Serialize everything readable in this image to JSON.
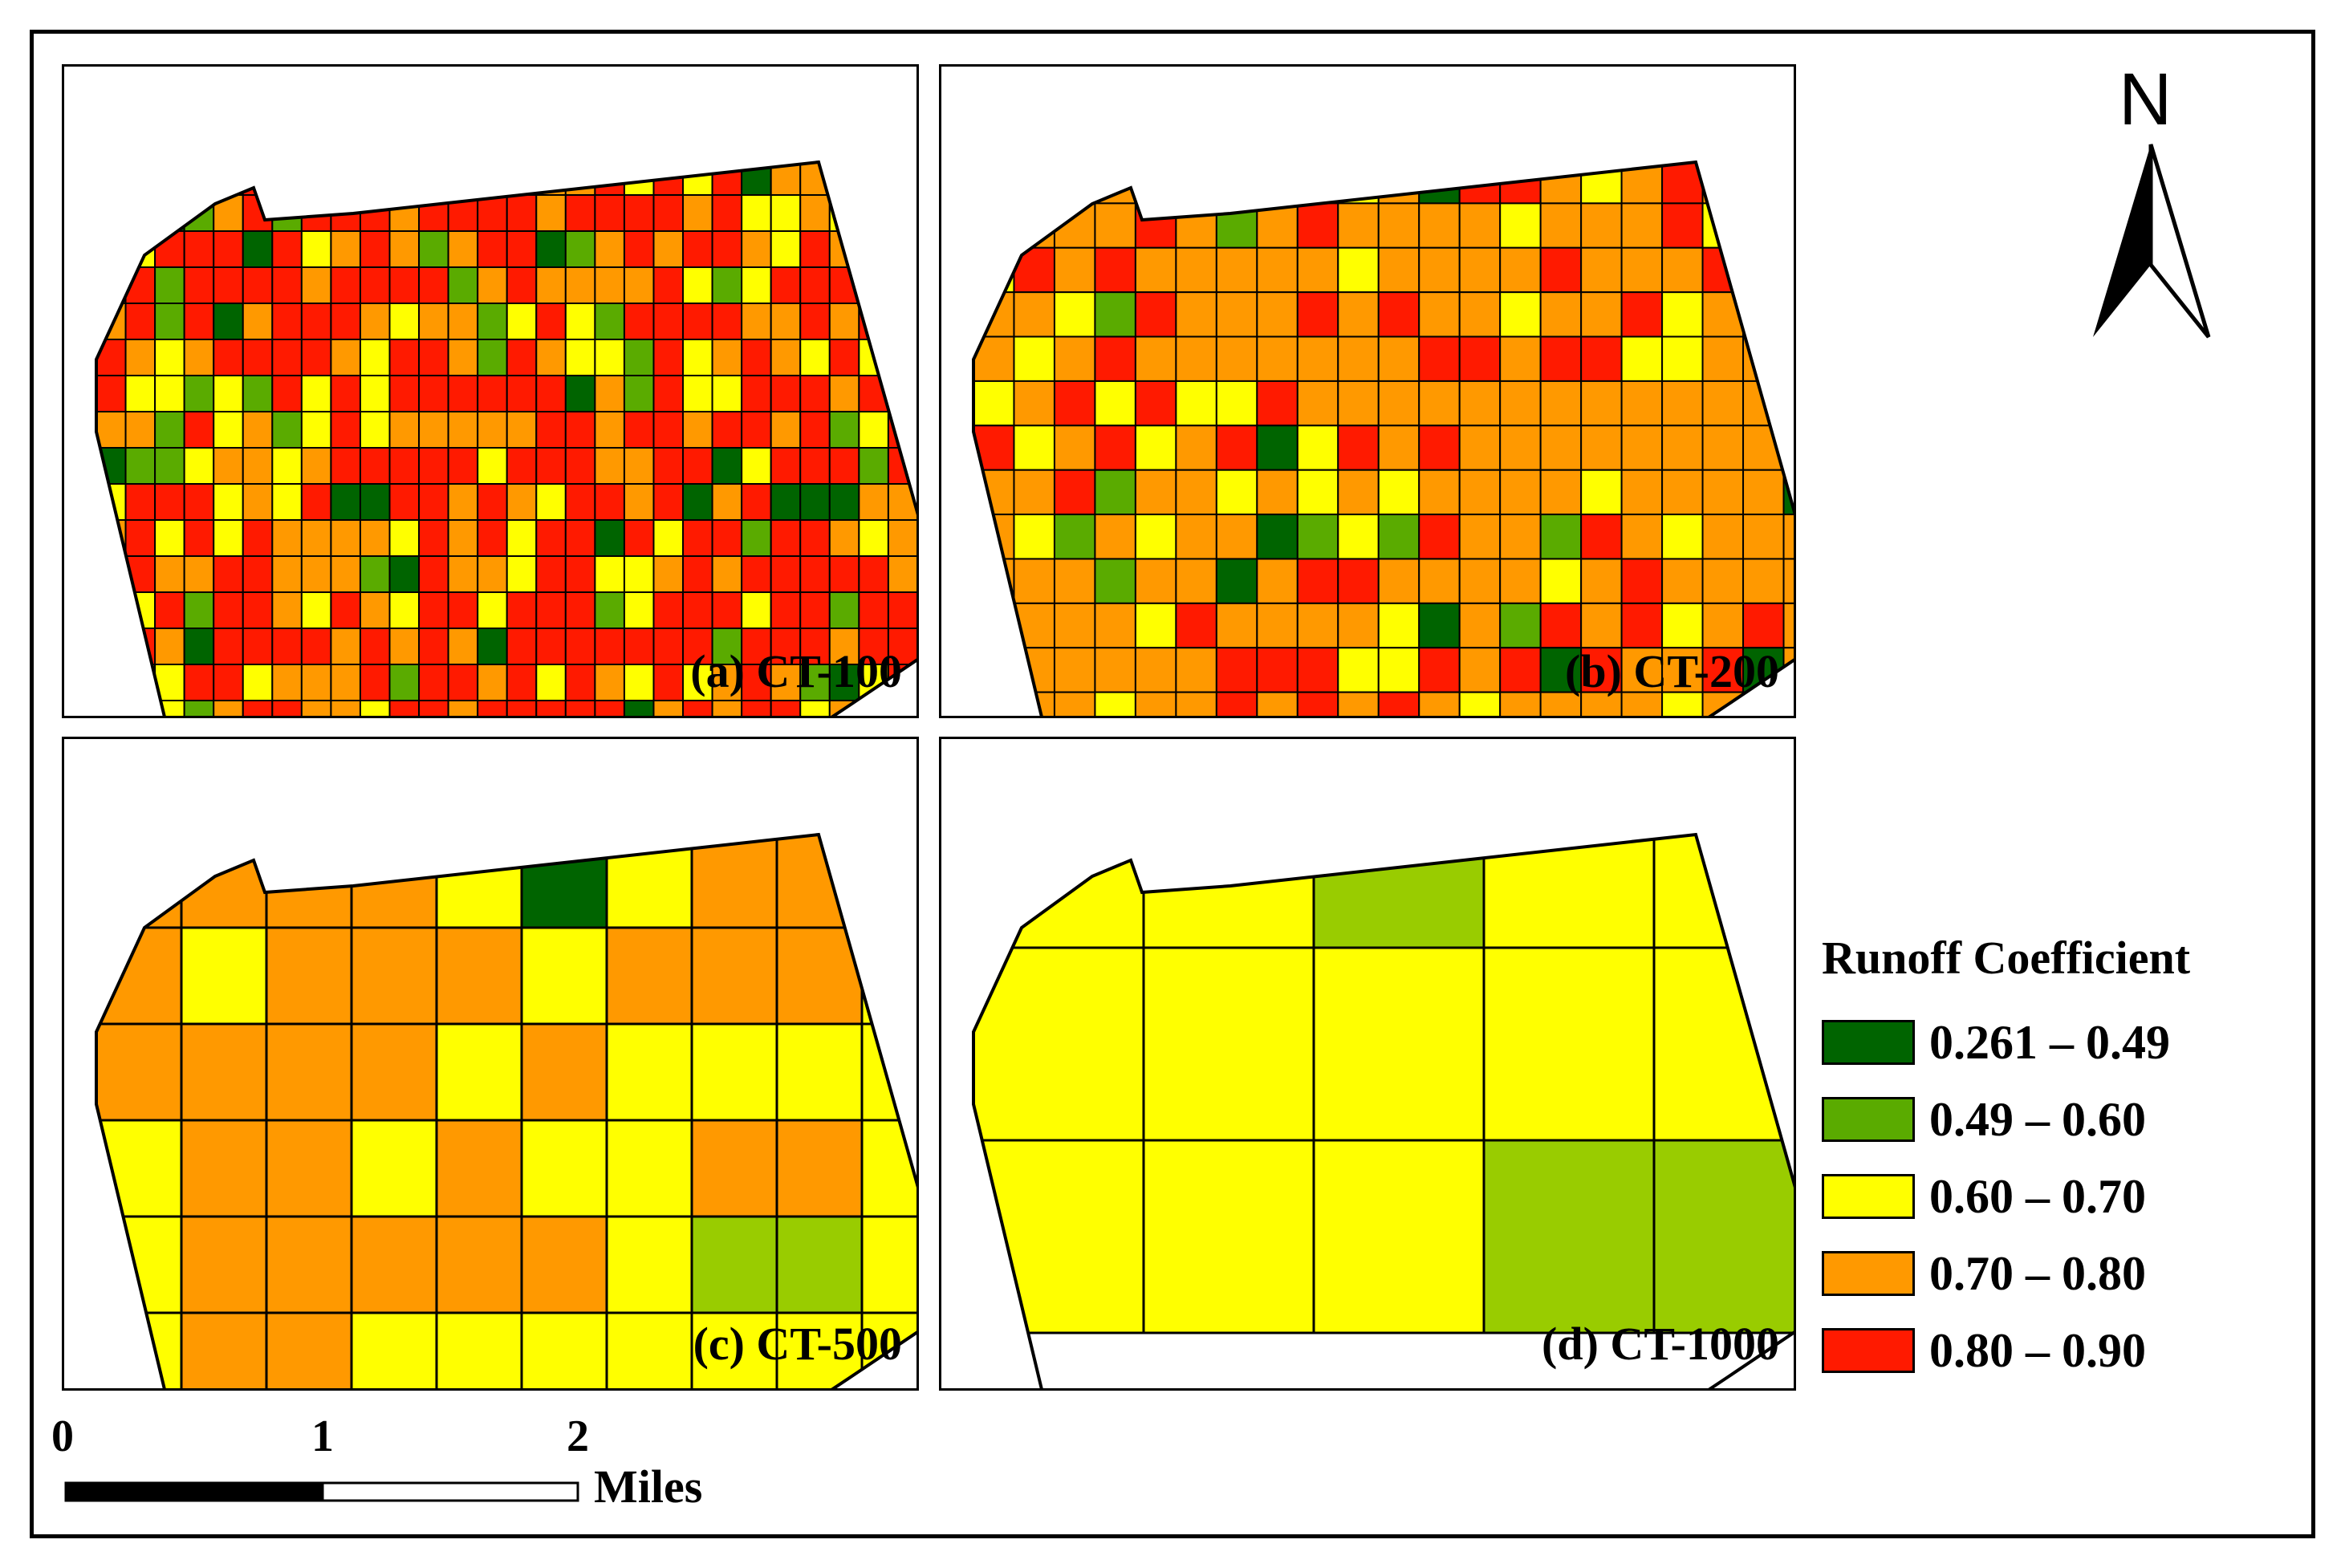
{
  "panels": [
    {
      "id": "a",
      "label": "(a) CT-100",
      "grid_cols": 29,
      "grid_rows": 16,
      "seed": 11,
      "scheme": "ct100"
    },
    {
      "id": "b",
      "label": "(b) CT-200",
      "grid_cols": 21,
      "grid_rows": 13,
      "seed": 23,
      "scheme": "ct200"
    },
    {
      "id": "c",
      "label": "(c) CT-500",
      "grid_cols": 10,
      "grid_rows": 6,
      "seed": 5,
      "scheme": "ct500"
    },
    {
      "id": "d",
      "label": "(d) CT-1000",
      "grid_cols": 5,
      "grid_rows": 3,
      "seed": 7,
      "scheme": "ct1000"
    }
  ],
  "north_arrow": {
    "label": "N"
  },
  "legend": {
    "title": "Runoff Coefficient",
    "classes": [
      {
        "label": "0.261 – 0.49",
        "color": "#006400"
      },
      {
        "label": "0.49 – 0.60",
        "color": "#5aab00"
      },
      {
        "label": "0.60 – 0.70",
        "color": "#ffff00"
      },
      {
        "label": "0.70 – 0.80",
        "color": "#ff9900"
      },
      {
        "label": "0.80 – 0.90",
        "color": "#ff1a00"
      }
    ]
  },
  "scale_bar": {
    "ticks": [
      "0",
      "1",
      "2"
    ],
    "unit": "Miles"
  },
  "cell_colors": {
    "ct1000_green": "#99cc00"
  }
}
